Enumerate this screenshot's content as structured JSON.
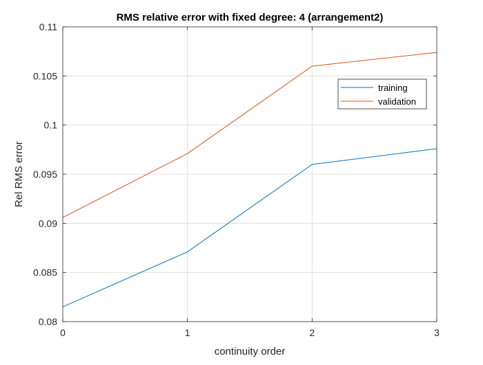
{
  "chart_data": {
    "type": "line",
    "title": "RMS relative error with fixed degree: 4 (arrangement2)",
    "xlabel": "continuity order",
    "ylabel": "Rel RMS error",
    "x": [
      0,
      1,
      2,
      3
    ],
    "xlim": [
      0,
      3
    ],
    "ylim": [
      0.08,
      0.11
    ],
    "xticks": [
      "0",
      "1",
      "2",
      "3"
    ],
    "yticks": [
      "0.08",
      "0.085",
      "0.09",
      "0.095",
      "0.1",
      "0.105",
      "0.11"
    ],
    "grid": true,
    "legend_position": "upper-right",
    "series": [
      {
        "name": "training",
        "color": "#0072BD",
        "values": [
          0.0815,
          0.0871,
          0.096,
          0.0976
        ]
      },
      {
        "name": "validation",
        "color": "#D95319",
        "values": [
          0.0906,
          0.0971,
          0.106,
          0.1074
        ]
      }
    ]
  }
}
